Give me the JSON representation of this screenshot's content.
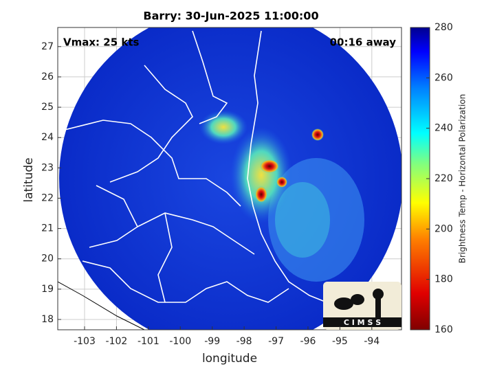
{
  "chart_data": {
    "type": "map",
    "title": "Barry: 30-Jun-2025 11:00:00",
    "annotations": [
      "Vmax: 25 kts",
      "00:16 away"
    ],
    "xlabel": "longitude",
    "ylabel": "latitude",
    "xlim": [
      -103.84,
      -93.07
    ],
    "ylim": [
      17.66,
      27.63
    ],
    "xticks": [
      -103,
      -102,
      -101,
      -100,
      -99,
      -98,
      -97,
      -96,
      -95,
      -94
    ],
    "yticks": [
      18,
      19,
      20,
      21,
      22,
      23,
      24,
      25,
      26,
      27
    ],
    "grid": true,
    "colorbar": {
      "label": "Brightness Temp - Horizontal Polarization",
      "lim": [
        160,
        280
      ],
      "ticks": [
        160,
        180,
        200,
        220,
        240,
        260,
        280
      ]
    },
    "logo": "C I M S S"
  }
}
